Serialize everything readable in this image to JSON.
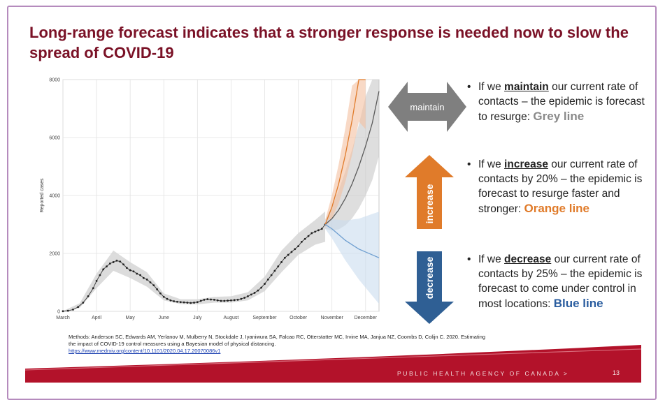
{
  "slide": {
    "title": "Long-range forecast indicates that a stronger response is needed now to slow the spread of COVID-19",
    "agency": "PUBLIC HEALTH AGENCY OF CANADA >",
    "page": "13",
    "methods_text": "Methods: Anderson SC, Edwards AM, Yerlanov M, Mulberry N, Stockdale J, Iyaniwura SA, Falcao RC, Otterstatter MC, Irvine MA, Janjua NZ, Coombs D, Colijn C. 2020. Estimating the impact of COVID-19 control measures using a Bayesian model of physical distancing.",
    "methods_link": "https://www.medrxiv.org/content/10.1101/2020.04.17.20070086v1"
  },
  "arrows": {
    "maintain": {
      "label": "maintain",
      "color": "#7f7f7f"
    },
    "increase": {
      "label": "increase",
      "color": "#e07b2a"
    },
    "decrease": {
      "label": "decrease",
      "color": "#2f5f94"
    }
  },
  "bullets": [
    {
      "pre": "If we ",
      "kw": "maintain",
      "mid": " our current rate of contacts – the epidemic is forecast to resurge: ",
      "line": "Grey line"
    },
    {
      "pre": "If we ",
      "kw": "increase",
      "mid": " our current rate of contacts by 20% – the epidemic is forecast to resurge faster and stronger: ",
      "line": "Orange line"
    },
    {
      "pre": "If we ",
      "kw": "decrease",
      "mid": " our current rate of contacts by 25% – the epidemic is forecast to come under control in most locations: ",
      "line": "Blue line"
    }
  ],
  "colors": {
    "title": "#7a1126",
    "grey": "#8a8a8a",
    "orange": "#e07b2a",
    "blue": "#2a5d9f",
    "footer": "#b3122a"
  },
  "chart_data": {
    "type": "line",
    "ylabel": "Reported cases",
    "xlabel": "",
    "ylim": [
      0,
      8000
    ],
    "yticks": [
      0,
      2000,
      4000,
      6000,
      8000
    ],
    "xlim": [
      0,
      9.4
    ],
    "xticks": [
      "March",
      "April",
      "May",
      "June",
      "July",
      "August",
      "September",
      "October",
      "November",
      "December"
    ],
    "grid": true,
    "observed": {
      "name": "Reported cases",
      "x": [
        0.0,
        0.15,
        0.3,
        0.45,
        0.6,
        0.75,
        0.9,
        1.0,
        1.1,
        1.2,
        1.3,
        1.4,
        1.5,
        1.6,
        1.7,
        1.8,
        1.9,
        2.0,
        2.1,
        2.2,
        2.3,
        2.4,
        2.5,
        2.6,
        2.7,
        2.8,
        2.9,
        3.0,
        3.1,
        3.2,
        3.3,
        3.4,
        3.5,
        3.6,
        3.7,
        3.8,
        3.9,
        4.0,
        4.1,
        4.2,
        4.3,
        4.4,
        4.5,
        4.6,
        4.7,
        4.8,
        4.9,
        5.0,
        5.1,
        5.2,
        5.3,
        5.4,
        5.5,
        5.6,
        5.7,
        5.8,
        5.9,
        6.0,
        6.1,
        6.2,
        6.3,
        6.4,
        6.5,
        6.6,
        6.7,
        6.8,
        6.9,
        7.0,
        7.1,
        7.2,
        7.3,
        7.4,
        7.5,
        7.6,
        7.7,
        7.8
      ],
      "y": [
        5,
        20,
        60,
        150,
        300,
        520,
        800,
        1050,
        1250,
        1450,
        1550,
        1650,
        1700,
        1750,
        1720,
        1620,
        1500,
        1420,
        1380,
        1300,
        1250,
        1150,
        1100,
        1000,
        900,
        760,
        620,
        500,
        430,
        380,
        350,
        330,
        320,
        310,
        300,
        290,
        300,
        320,
        360,
        400,
        420,
        410,
        400,
        380,
        360,
        360,
        370,
        380,
        390,
        400,
        430,
        470,
        520,
        580,
        640,
        720,
        820,
        950,
        1100,
        1250,
        1400,
        1550,
        1700,
        1850,
        1950,
        2050,
        2150,
        2250,
        2400,
        2500,
        2600,
        2700,
        2750,
        2800,
        2850,
        3000
      ]
    },
    "series": [
      {
        "name": "maintain",
        "color": "#5a5a5a",
        "band_color": "#c8c8c8",
        "x": [
          7.8,
          8.0,
          8.2,
          8.4,
          8.6,
          8.8,
          9.0,
          9.2,
          9.4
        ],
        "y": [
          3000,
          3200,
          3500,
          3900,
          4400,
          5000,
          5700,
          6500,
          7600
        ]
      },
      {
        "name": "increase",
        "color": "#e07b2a",
        "band_color": "#f3c0a0",
        "x": [
          7.8,
          8.0,
          8.2,
          8.4,
          8.6,
          8.8,
          9.0
        ],
        "y": [
          3000,
          3600,
          4400,
          5400,
          6600,
          8000,
          8000
        ]
      },
      {
        "name": "decrease",
        "color": "#6f9fd0",
        "band_color": "#c9dcef",
        "x": [
          7.8,
          8.0,
          8.2,
          8.4,
          8.6,
          8.8,
          9.0,
          9.2,
          9.4
        ],
        "y": [
          3000,
          2850,
          2650,
          2450,
          2300,
          2150,
          2050,
          1950,
          1850
        ]
      }
    ],
    "observed_band": {
      "x": [
        0.0,
        0.5,
        1.0,
        1.5,
        2.0,
        2.5,
        3.0,
        3.5,
        4.0,
        4.5,
        5.0,
        5.5,
        6.0,
        6.5,
        7.0,
        7.5,
        7.8
      ],
      "lo": [
        0,
        120,
        800,
        1400,
        1150,
        850,
        380,
        250,
        240,
        300,
        300,
        380,
        700,
        1350,
        1950,
        2300,
        2400
      ],
      "hi": [
        10,
        280,
        1300,
        2100,
        1700,
        1350,
        620,
        420,
        420,
        500,
        520,
        660,
        1200,
        2100,
        2700,
        3150,
        3450
      ]
    }
  }
}
